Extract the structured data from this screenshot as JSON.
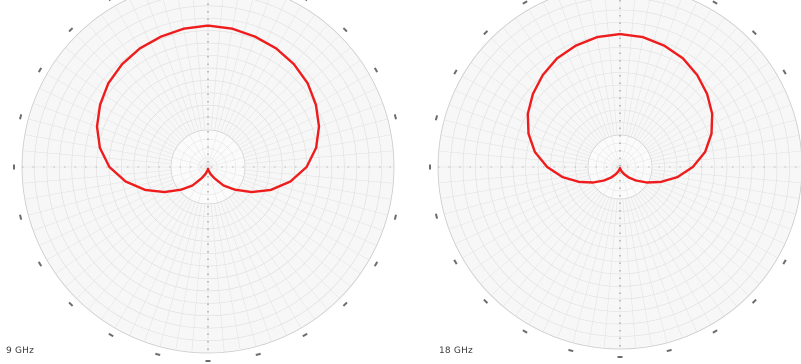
{
  "chart_data": [
    {
      "type": "polar",
      "caption": "9 GHz",
      "angular_unit": "deg",
      "radial_range": [
        0,
        1
      ],
      "grid": true,
      "series": [
        {
          "color": "#ee1c1c",
          "points": [
            [
              0,
              0.76
            ],
            [
              10,
              0.755
            ],
            [
              20,
              0.745
            ],
            [
              30,
              0.735
            ],
            [
              40,
              0.72
            ],
            [
              50,
              0.7
            ],
            [
              60,
              0.67
            ],
            [
              70,
              0.635
            ],
            [
              80,
              0.59
            ],
            [
              90,
              0.53
            ],
            [
              100,
              0.45
            ],
            [
              110,
              0.36
            ],
            [
              120,
              0.27
            ],
            [
              130,
              0.19
            ],
            [
              140,
              0.13
            ],
            [
              150,
              0.07
            ],
            [
              160,
              0.04
            ],
            [
              170,
              0.02
            ],
            [
              180,
              0.01
            ],
            [
              190,
              0.02
            ],
            [
              200,
              0.04
            ],
            [
              210,
              0.07
            ],
            [
              220,
              0.13
            ],
            [
              230,
              0.19
            ],
            [
              240,
              0.27
            ],
            [
              250,
              0.36
            ],
            [
              260,
              0.45
            ],
            [
              270,
              0.53
            ],
            [
              280,
              0.59
            ],
            [
              290,
              0.635
            ],
            [
              300,
              0.67
            ],
            [
              310,
              0.7
            ],
            [
              320,
              0.72
            ],
            [
              330,
              0.735
            ],
            [
              340,
              0.745
            ],
            [
              350,
              0.755
            ],
            [
              360,
              0.76
            ]
          ]
        }
      ]
    },
    {
      "type": "polar",
      "caption": "18 GHz",
      "angular_unit": "deg",
      "radial_range": [
        0,
        1
      ],
      "grid": true,
      "series": [
        {
          "color": "#ee1c1c",
          "points": [
            [
              0,
              0.73
            ],
            [
              10,
              0.725
            ],
            [
              20,
              0.71
            ],
            [
              30,
              0.69
            ],
            [
              40,
              0.66
            ],
            [
              50,
              0.625
            ],
            [
              60,
              0.585
            ],
            [
              70,
              0.535
            ],
            [
              80,
              0.475
            ],
            [
              90,
              0.4
            ],
            [
              100,
              0.32
            ],
            [
              110,
              0.24
            ],
            [
              120,
              0.17
            ],
            [
              130,
              0.115
            ],
            [
              140,
              0.075
            ],
            [
              150,
              0.045
            ],
            [
              160,
              0.025
            ],
            [
              170,
              0.012
            ],
            [
              180,
              0.006
            ],
            [
              190,
              0.012
            ],
            [
              200,
              0.025
            ],
            [
              210,
              0.045
            ],
            [
              220,
              0.075
            ],
            [
              230,
              0.115
            ],
            [
              240,
              0.17
            ],
            [
              250,
              0.24
            ],
            [
              260,
              0.32
            ],
            [
              270,
              0.4
            ],
            [
              280,
              0.475
            ],
            [
              290,
              0.535
            ],
            [
              300,
              0.585
            ],
            [
              310,
              0.625
            ],
            [
              320,
              0.66
            ],
            [
              330,
              0.69
            ],
            [
              340,
              0.71
            ],
            [
              350,
              0.725
            ],
            [
              360,
              0.73
            ]
          ]
        }
      ]
    }
  ]
}
